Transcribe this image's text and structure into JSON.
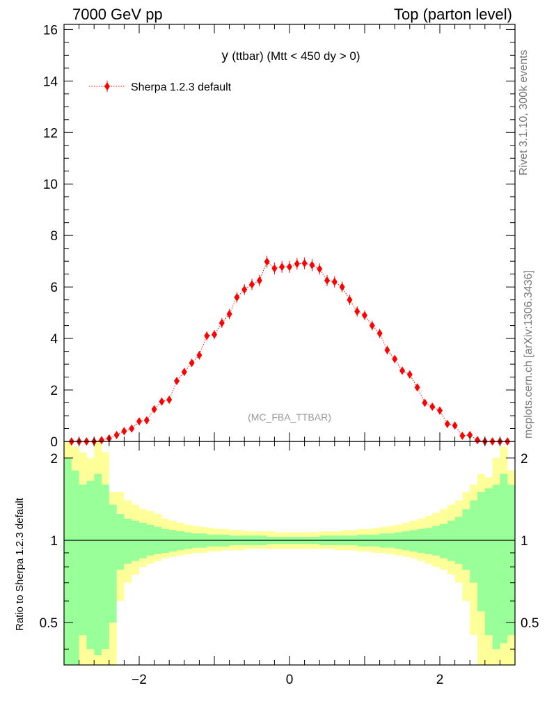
{
  "header": {
    "left": "7000 GeV pp",
    "right": "Top (parton level)"
  },
  "side_labels": {
    "rivet": "Rivet 3.1.10,  300k events",
    "mcplots": "mcplots.cern.ch [arXiv:1306.3436]"
  },
  "plot": {
    "title": "y (ttbar) (Mtt < 450 dy > 0)",
    "analysis_tag": "(MC_FBA_TTBAR)",
    "ratio_ylabel": "Ratio to Sherpa 1.2.3 default"
  },
  "colors": {
    "series": "#ff0000",
    "band_outer": "#ffff99",
    "band_inner": "#99ff99",
    "reference_line": "#000000"
  },
  "chart_data": [
    {
      "type": "scatter",
      "panel": "main",
      "title": "y (ttbar) (Mtt < 450 dy > 0)",
      "xlim": [
        -3.0,
        3.0
      ],
      "ylim": [
        0,
        16.2
      ],
      "yticks": [
        0,
        2,
        4,
        6,
        8,
        10,
        12,
        14,
        16
      ],
      "legend_position": "top-left",
      "series": [
        {
          "name": "Sherpa 1.2.3 default",
          "marker": "diamond",
          "line": "dotted",
          "color": "#ff0000",
          "x": [
            -2.9,
            -2.8,
            -2.7,
            -2.6,
            -2.5,
            -2.4,
            -2.3,
            -2.2,
            -2.1,
            -2.0,
            -1.9,
            -1.8,
            -1.7,
            -1.6,
            -1.5,
            -1.4,
            -1.3,
            -1.2,
            -1.1,
            -1.0,
            -0.9,
            -0.8,
            -0.7,
            -0.6,
            -0.5,
            -0.4,
            -0.3,
            -0.2,
            -0.1,
            0.0,
            0.1,
            0.2,
            0.3,
            0.4,
            0.5,
            0.6,
            0.7,
            0.8,
            0.9,
            1.0,
            1.1,
            1.2,
            1.3,
            1.4,
            1.5,
            1.6,
            1.7,
            1.8,
            1.9,
            2.0,
            2.1,
            2.2,
            2.3,
            2.4,
            2.5,
            2.6,
            2.7,
            2.8,
            2.9
          ],
          "y": [
            0.0,
            0.0,
            0.0,
            0.0,
            0.05,
            0.12,
            0.25,
            0.4,
            0.5,
            0.78,
            0.82,
            1.25,
            1.55,
            1.62,
            2.35,
            2.7,
            3.05,
            3.35,
            4.1,
            4.15,
            4.6,
            4.95,
            5.6,
            5.9,
            6.1,
            6.25,
            6.98,
            6.72,
            6.78,
            6.78,
            6.9,
            6.92,
            6.85,
            6.7,
            6.25,
            6.2,
            6.0,
            5.5,
            5.05,
            4.9,
            4.5,
            4.2,
            3.55,
            3.2,
            2.75,
            2.6,
            2.1,
            1.5,
            1.35,
            1.2,
            0.68,
            0.62,
            0.22,
            0.25,
            0.05,
            0.0,
            0.0,
            0.0,
            0.0
          ],
          "yerr": [
            0.03,
            0.03,
            0.03,
            0.03,
            0.04,
            0.05,
            0.06,
            0.07,
            0.08,
            0.09,
            0.09,
            0.11,
            0.12,
            0.12,
            0.14,
            0.15,
            0.16,
            0.17,
            0.18,
            0.18,
            0.19,
            0.2,
            0.21,
            0.21,
            0.22,
            0.22,
            0.23,
            0.23,
            0.23,
            0.23,
            0.23,
            0.23,
            0.23,
            0.22,
            0.22,
            0.22,
            0.21,
            0.2,
            0.2,
            0.19,
            0.19,
            0.18,
            0.17,
            0.16,
            0.15,
            0.15,
            0.13,
            0.11,
            0.11,
            0.1,
            0.08,
            0.07,
            0.05,
            0.05,
            0.04,
            0.03,
            0.03,
            0.03,
            0.03
          ]
        }
      ]
    },
    {
      "type": "area",
      "panel": "ratio",
      "ylabel": "Ratio to Sherpa 1.2.3 default",
      "xlim": [
        -3.0,
        3.0
      ],
      "ylim": [
        0.35,
        2.3
      ],
      "yscale": "log",
      "yticks": [
        0.5,
        1,
        2
      ],
      "xticks": [
        -2,
        0,
        2
      ],
      "x_edges": [
        -3.0,
        -2.9,
        -2.8,
        -2.7,
        -2.6,
        -2.5,
        -2.4,
        -2.3,
        -2.2,
        -2.1,
        -2.0,
        -1.9,
        -1.8,
        -1.7,
        -1.6,
        -1.5,
        -1.4,
        -1.3,
        -1.2,
        -1.1,
        -1.0,
        -0.9,
        -0.8,
        -0.7,
        -0.6,
        -0.5,
        -0.4,
        -0.3,
        -0.2,
        -0.1,
        0.0,
        0.1,
        0.2,
        0.3,
        0.4,
        0.5,
        0.6,
        0.7,
        0.8,
        0.9,
        1.0,
        1.1,
        1.2,
        1.3,
        1.4,
        1.5,
        1.6,
        1.7,
        1.8,
        1.9,
        2.0,
        2.1,
        2.2,
        2.3,
        2.4,
        2.5,
        2.6,
        2.7,
        2.8,
        2.9,
        3.0
      ],
      "reference_line": 1,
      "bands": [
        {
          "name": "outer",
          "color": "#ffff99",
          "upper": [
            2.5,
            2.2,
            2.1,
            2.0,
            2.5,
            2.1,
            1.5,
            1.5,
            1.4,
            1.35,
            1.3,
            1.28,
            1.25,
            1.2,
            1.18,
            1.16,
            1.14,
            1.13,
            1.12,
            1.11,
            1.1,
            1.1,
            1.09,
            1.09,
            1.08,
            1.08,
            1.08,
            1.08,
            1.07,
            1.07,
            1.07,
            1.07,
            1.07,
            1.07,
            1.08,
            1.08,
            1.08,
            1.09,
            1.09,
            1.1,
            1.1,
            1.11,
            1.12,
            1.13,
            1.14,
            1.16,
            1.18,
            1.2,
            1.23,
            1.26,
            1.3,
            1.35,
            1.4,
            1.5,
            1.6,
            1.75,
            1.7,
            2.0,
            2.2,
            1.8,
            2.5
          ],
          "lower": [
            0.2,
            0.25,
            0.25,
            0.25,
            0.2,
            0.25,
            0.25,
            0.6,
            0.7,
            0.75,
            0.8,
            0.82,
            0.84,
            0.86,
            0.87,
            0.88,
            0.89,
            0.9,
            0.9,
            0.91,
            0.91,
            0.92,
            0.92,
            0.92,
            0.93,
            0.93,
            0.93,
            0.93,
            0.93,
            0.93,
            0.93,
            0.93,
            0.93,
            0.93,
            0.93,
            0.93,
            0.92,
            0.92,
            0.92,
            0.91,
            0.91,
            0.9,
            0.9,
            0.89,
            0.88,
            0.87,
            0.86,
            0.84,
            0.82,
            0.8,
            0.78,
            0.75,
            0.7,
            0.6,
            0.45,
            0.35,
            0.3,
            0.3,
            0.3,
            0.3,
            0.2
          ]
        },
        {
          "name": "inner",
          "color": "#99ff99",
          "upper": [
            2.0,
            1.8,
            1.6,
            1.65,
            1.75,
            1.6,
            1.35,
            1.25,
            1.2,
            1.18,
            1.16,
            1.14,
            1.12,
            1.1,
            1.09,
            1.08,
            1.07,
            1.06,
            1.06,
            1.05,
            1.05,
            1.05,
            1.04,
            1.04,
            1.04,
            1.04,
            1.04,
            1.03,
            1.03,
            1.03,
            1.03,
            1.03,
            1.03,
            1.03,
            1.04,
            1.04,
            1.04,
            1.04,
            1.04,
            1.05,
            1.05,
            1.05,
            1.06,
            1.06,
            1.07,
            1.08,
            1.09,
            1.1,
            1.11,
            1.13,
            1.15,
            1.18,
            1.22,
            1.3,
            1.4,
            1.5,
            1.55,
            1.6,
            1.75,
            1.6,
            1.9
          ],
          "lower": [
            0.25,
            0.35,
            0.45,
            0.4,
            0.38,
            0.4,
            0.5,
            0.78,
            0.82,
            0.84,
            0.86,
            0.88,
            0.89,
            0.9,
            0.91,
            0.92,
            0.93,
            0.94,
            0.94,
            0.95,
            0.95,
            0.95,
            0.96,
            0.96,
            0.96,
            0.96,
            0.96,
            0.97,
            0.97,
            0.97,
            0.97,
            0.97,
            0.97,
            0.97,
            0.96,
            0.96,
            0.96,
            0.96,
            0.96,
            0.95,
            0.95,
            0.95,
            0.94,
            0.94,
            0.93,
            0.92,
            0.91,
            0.9,
            0.89,
            0.88,
            0.86,
            0.84,
            0.82,
            0.78,
            0.7,
            0.55,
            0.45,
            0.4,
            0.42,
            0.45,
            0.3
          ]
        }
      ]
    }
  ]
}
